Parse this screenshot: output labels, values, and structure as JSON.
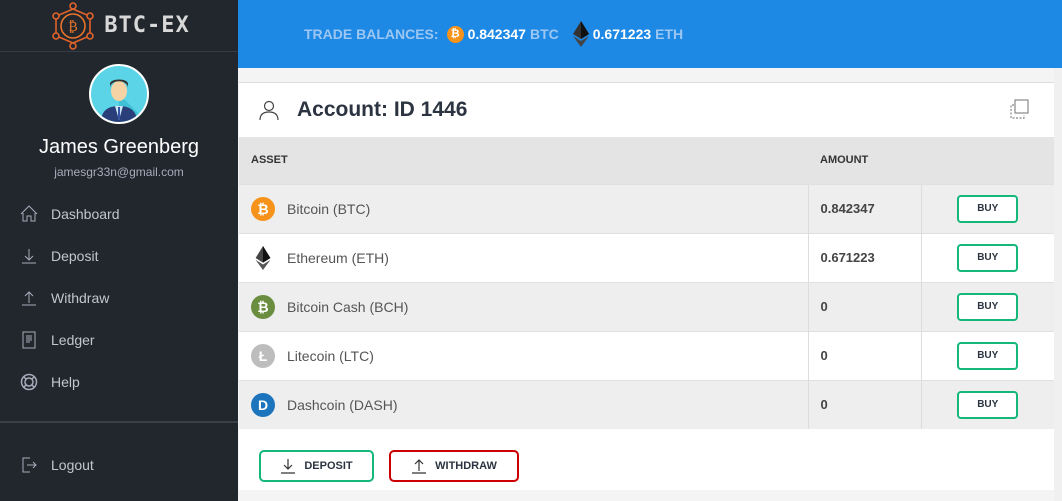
{
  "brand": {
    "name": "BTC-EX"
  },
  "user": {
    "name": "James Greenberg",
    "email": "jamesgr33n@gmail.com"
  },
  "nav": [
    {
      "label": "Dashboard",
      "icon": "home-icon"
    },
    {
      "label": "Deposit",
      "icon": "download-icon"
    },
    {
      "label": "Withdraw",
      "icon": "upload-icon"
    },
    {
      "label": "Ledger",
      "icon": "document-icon"
    },
    {
      "label": "Help",
      "icon": "lifebuoy-icon"
    }
  ],
  "logout": {
    "label": "Logout"
  },
  "topbar": {
    "label": "TRADE BALANCES:",
    "btc_value": "0.842347",
    "btc_unit": "BTC",
    "eth_value": "0.671223",
    "eth_unit": "ETH"
  },
  "card": {
    "title": "Account: ID 1446"
  },
  "table": {
    "headers": {
      "asset": "ASSET",
      "amount": "AMOUNT"
    },
    "rows": [
      {
        "name": "Bitcoin (BTC)",
        "amount": "0.842347",
        "buy": "BUY",
        "color": "#f7931a",
        "glyph": "₿"
      },
      {
        "name": "Ethereum (ETH)",
        "amount": "0.671223",
        "buy": "BUY",
        "color": "#333333",
        "glyph": "eth"
      },
      {
        "name": "Bitcoin Cash (BCH)",
        "amount": "0",
        "buy": "BUY",
        "color": "#6a8d3f",
        "glyph": "₿"
      },
      {
        "name": "Litecoin (LTC)",
        "amount": "0",
        "buy": "BUY",
        "color": "#bdbdbd",
        "glyph": "Ł"
      },
      {
        "name": "Dashcoin (DASH)",
        "amount": "0",
        "buy": "BUY",
        "color": "#1c75bc",
        "glyph": "D"
      }
    ]
  },
  "actions": {
    "deposit": "DEPOSIT",
    "withdraw": "WITHDRAW",
    "deposit_color": "#14b87a",
    "withdraw_color": "#cc0000"
  },
  "colors": {
    "sidebar": "#22272e",
    "topbar": "#1e88e5"
  }
}
